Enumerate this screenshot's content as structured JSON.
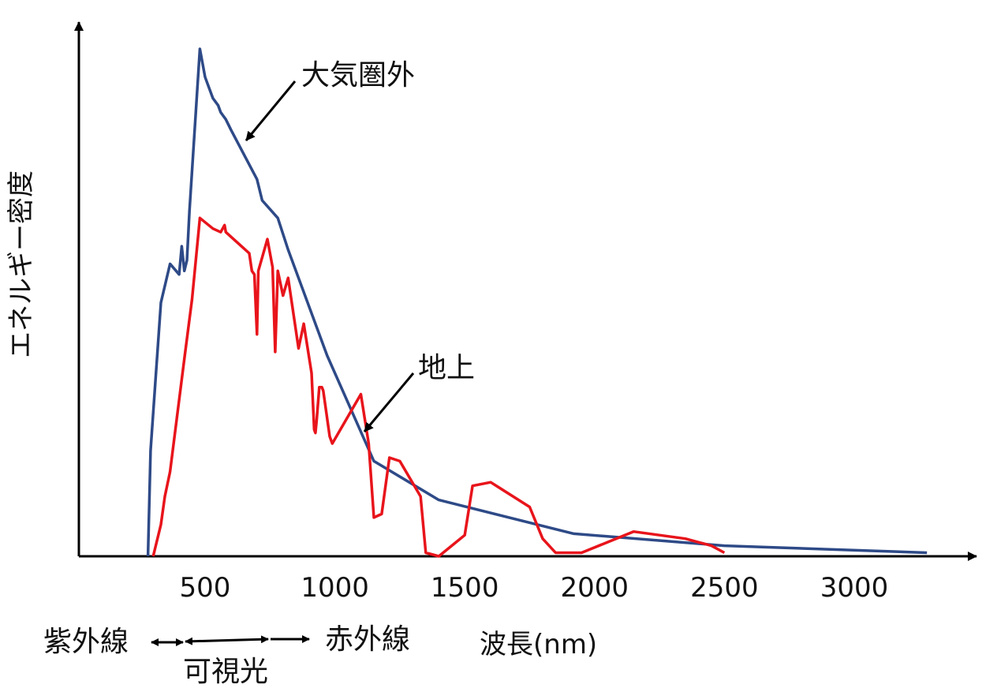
{
  "chart_data": {
    "type": "line",
    "ylabel": "エネルギー密度",
    "xlabel": "波長(nm)",
    "x_ticks": [
      "500",
      "1000",
      "1500",
      "2000",
      "2500",
      "3000"
    ],
    "x_tick_values": [
      500,
      1000,
      1500,
      2000,
      2500,
      3000
    ],
    "y_scale": "arbitrary (no ticks)",
    "series": [
      {
        "name": "大気圏外",
        "color": "#2e4a87",
        "points": [
          [
            280,
            0
          ],
          [
            290,
            150
          ],
          [
            330,
            360
          ],
          [
            365,
            415
          ],
          [
            400,
            400
          ],
          [
            410,
            440
          ],
          [
            420,
            405
          ],
          [
            430,
            420
          ],
          [
            440,
            490
          ],
          [
            480,
            720
          ],
          [
            500,
            680
          ],
          [
            530,
            650
          ],
          [
            550,
            640
          ],
          [
            560,
            630
          ],
          [
            580,
            620
          ],
          [
            600,
            605
          ],
          [
            700,
            535
          ],
          [
            720,
            505
          ],
          [
            780,
            480
          ],
          [
            820,
            435
          ],
          [
            970,
            285
          ],
          [
            1150,
            135
          ],
          [
            1400,
            80
          ],
          [
            1920,
            32
          ],
          [
            2500,
            15
          ],
          [
            3280,
            5
          ]
        ]
      },
      {
        "name": "地上",
        "color": "#e8141b",
        "points": [
          [
            300,
            0
          ],
          [
            330,
            45
          ],
          [
            345,
            85
          ],
          [
            365,
            120
          ],
          [
            420,
            280
          ],
          [
            450,
            365
          ],
          [
            480,
            480
          ],
          [
            530,
            465
          ],
          [
            560,
            460
          ],
          [
            575,
            470
          ],
          [
            580,
            460
          ],
          [
            640,
            440
          ],
          [
            670,
            430
          ],
          [
            680,
            405
          ],
          [
            690,
            400
          ],
          [
            700,
            315
          ],
          [
            705,
            405
          ],
          [
            740,
            450
          ],
          [
            760,
            410
          ],
          [
            770,
            290
          ],
          [
            780,
            405
          ],
          [
            800,
            370
          ],
          [
            820,
            395
          ],
          [
            860,
            295
          ],
          [
            880,
            330
          ],
          [
            910,
            260
          ],
          [
            920,
            180
          ],
          [
            925,
            175
          ],
          [
            930,
            195
          ],
          [
            940,
            240
          ],
          [
            950,
            240
          ],
          [
            955,
            235
          ],
          [
            980,
            170
          ],
          [
            990,
            160
          ],
          [
            1100,
            230
          ],
          [
            1130,
            160
          ],
          [
            1150,
            55
          ],
          [
            1180,
            60
          ],
          [
            1210,
            140
          ],
          [
            1250,
            135
          ],
          [
            1330,
            85
          ],
          [
            1350,
            5
          ],
          [
            1400,
            0
          ],
          [
            1450,
            15
          ],
          [
            1500,
            30
          ],
          [
            1530,
            100
          ],
          [
            1600,
            105
          ],
          [
            1750,
            70
          ],
          [
            1800,
            25
          ],
          [
            1850,
            5
          ],
          [
            1950,
            5
          ],
          [
            2050,
            20
          ],
          [
            2150,
            35
          ],
          [
            2350,
            25
          ],
          [
            2450,
            15
          ],
          [
            2500,
            5
          ]
        ]
      }
    ],
    "annotations": [
      "大気圏外",
      "地上"
    ],
    "bands": [
      "紫外線",
      "可視光",
      "赤外線"
    ]
  }
}
